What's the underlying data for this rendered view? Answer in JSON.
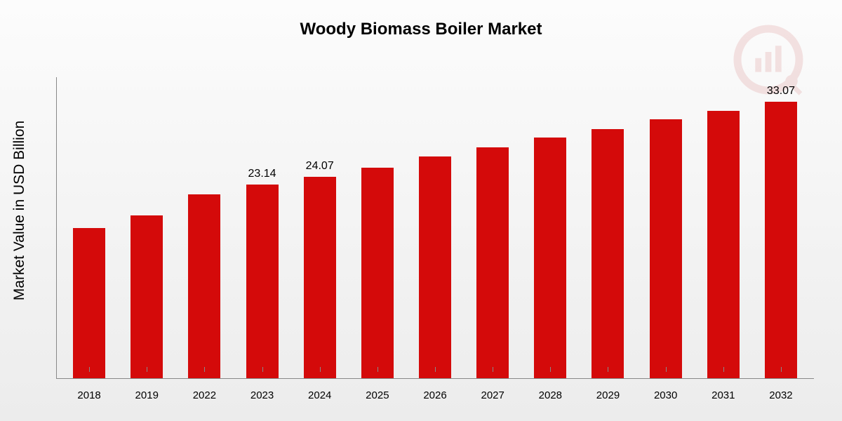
{
  "chart": {
    "type": "bar",
    "title": "Woody Biomass Boiler Market",
    "title_fontsize": 24,
    "ylabel": "Market Value in USD Billion",
    "ylabel_fontsize": 21,
    "categories": [
      "2018",
      "2019",
      "2022",
      "2023",
      "2024",
      "2025",
      "2026",
      "2027",
      "2028",
      "2029",
      "2030",
      "2031",
      "2032"
    ],
    "values": [
      18.0,
      19.5,
      22.0,
      23.14,
      24.07,
      25.2,
      26.5,
      27.6,
      28.8,
      29.8,
      31.0,
      32.0,
      33.07
    ],
    "value_labels": [
      "",
      "",
      "",
      "23.14",
      "24.07",
      "",
      "",
      "",
      "",
      "",
      "",
      "",
      "33.07"
    ],
    "ylim": [
      0,
      36
    ],
    "bar_color": "#d40a0a",
    "bar_width": 0.56,
    "background_gradient": [
      "#fcfcfc",
      "#ececec"
    ],
    "axis_color": "#888888",
    "text_color": "#000000",
    "category_fontsize": 15,
    "value_label_fontsize": 16,
    "watermark_color": "#c03030"
  }
}
